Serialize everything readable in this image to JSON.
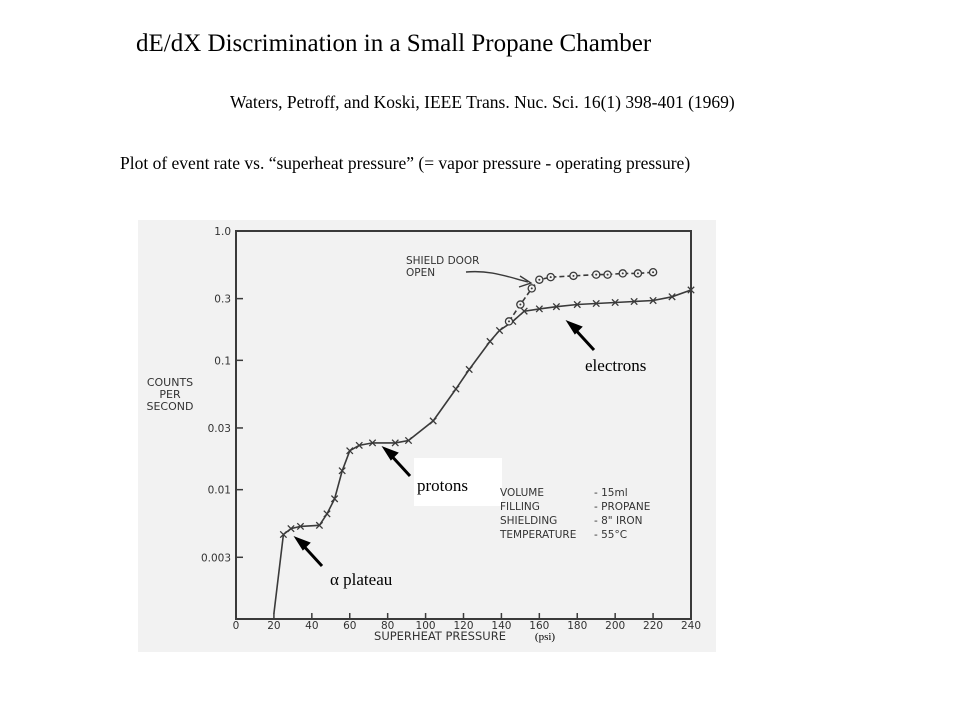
{
  "header": {
    "title": "dE/dX Discrimination  in a Small Propane Chamber",
    "citation": "Waters, Petroff, and Koski, IEEE Trans. Nuc. Sci. 16(1) 398-401 (1969)",
    "caption": "Plot of event rate vs. “superheat pressure” (= vapor pressure - operating pressure)"
  },
  "colors": {
    "ink": "#3a3a3a",
    "paper": "#f2f2f2",
    "annotation": "#000000"
  },
  "chart_data": {
    "type": "scatter",
    "title": "",
    "xlabel": "SUPERHEAT PRESSURE",
    "xunit": "(psi)",
    "ylabel": [
      "COUNTS",
      "PER",
      "SECOND"
    ],
    "xlim": [
      0,
      240
    ],
    "ylim": [
      0.001,
      1.0
    ],
    "yscale": "log",
    "grid": false,
    "x_ticks": [
      0,
      20,
      40,
      60,
      80,
      100,
      120,
      140,
      160,
      180,
      200,
      220,
      240
    ],
    "y_ticks": [
      {
        "value": 1.0,
        "label": "1.0"
      },
      {
        "value": 0.3,
        "label": "0.3"
      },
      {
        "value": 0.1,
        "label": "0.1"
      },
      {
        "value": 0.03,
        "label": "0.03"
      },
      {
        "value": 0.01,
        "label": "0.01"
      },
      {
        "value": 0.003,
        "label": "0.003"
      }
    ],
    "series": [
      {
        "name": "",
        "marker": "x",
        "x": [
          20,
          25,
          29,
          34,
          44,
          48,
          52,
          56,
          60,
          65,
          72,
          84,
          91,
          104,
          116,
          123,
          134,
          139,
          146,
          152,
          160,
          169,
          180,
          190,
          200,
          210,
          220,
          230,
          240
        ],
        "y": [
          0.0011,
          0.0045,
          0.005,
          0.0052,
          0.0053,
          0.0065,
          0.0085,
          0.014,
          0.02,
          0.022,
          0.023,
          0.023,
          0.024,
          0.034,
          0.06,
          0.085,
          0.14,
          0.17,
          0.2,
          0.24,
          0.25,
          0.26,
          0.27,
          0.275,
          0.28,
          0.285,
          0.29,
          0.31,
          0.35
        ]
      },
      {
        "name": "",
        "marker": "circle-dot",
        "x": [
          144,
          150,
          156,
          160,
          166,
          178,
          190,
          196,
          204,
          212,
          220
        ],
        "y": [
          0.2,
          0.27,
          0.36,
          0.42,
          0.44,
          0.45,
          0.46,
          0.46,
          0.47,
          0.47,
          0.48
        ]
      }
    ],
    "annotations": [
      {
        "text": "SHIELD DOOR",
        "style": "handwritten"
      },
      {
        "text": "OPEN",
        "style": "handwritten"
      },
      {
        "text": "VOLUME",
        "style": "handwritten"
      },
      {
        "text": "- 15ml",
        "style": "handwritten"
      },
      {
        "text": "FILLING",
        "style": "handwritten"
      },
      {
        "text": "- PROPANE",
        "style": "handwritten"
      },
      {
        "text": "SHIELDING",
        "style": "handwritten"
      },
      {
        "text": "- 8\" IRON",
        "style": "handwritten"
      },
      {
        "text": "TEMPERATURE",
        "style": "handwritten"
      },
      {
        "text": "- 55°C",
        "style": "handwritten"
      },
      {
        "text": "electrons",
        "style": "overlay"
      },
      {
        "text": "protons",
        "style": "overlay"
      },
      {
        "text": "α  plateau",
        "style": "overlay"
      }
    ]
  }
}
